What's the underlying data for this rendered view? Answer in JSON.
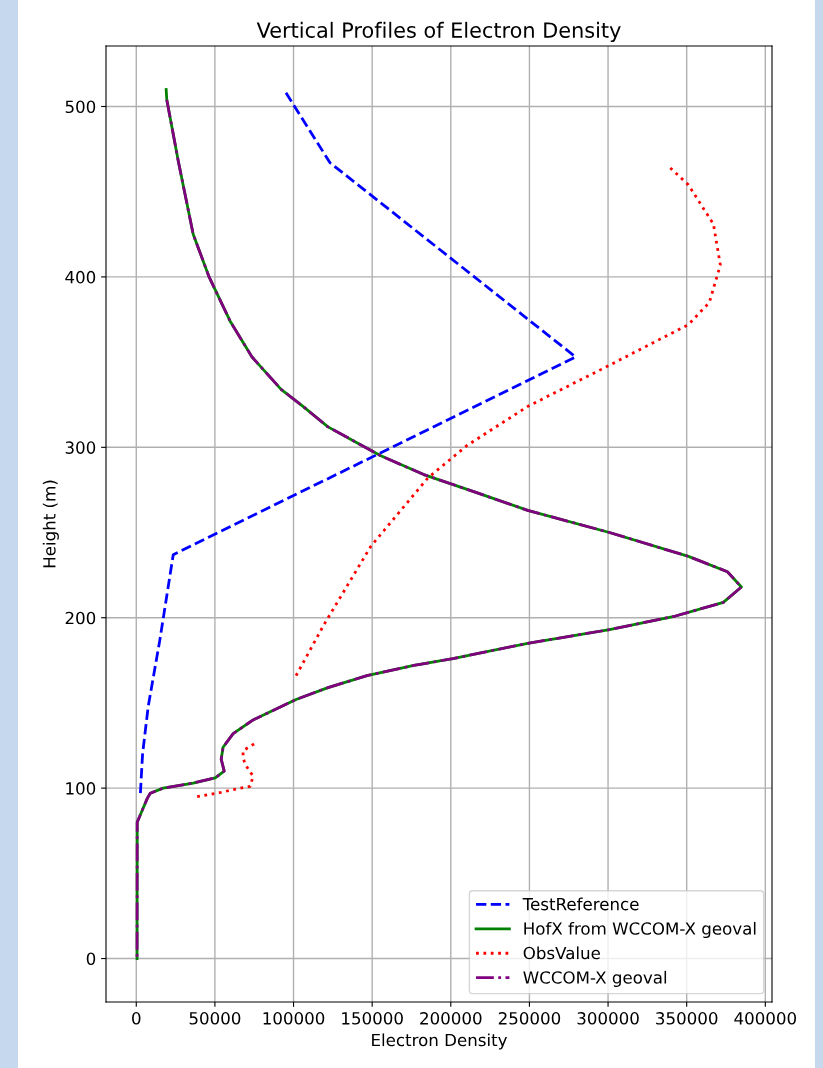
{
  "chart_data": {
    "type": "line",
    "title": "Vertical Profiles of Electron Density",
    "xlabel": "Electron Density",
    "ylabel": "Height (m)",
    "xlim": [
      -19250,
      404250
    ],
    "ylim": [
      -25.5,
      535.5
    ],
    "xticks": [
      0,
      50000,
      100000,
      150000,
      200000,
      250000,
      300000,
      350000,
      400000
    ],
    "yticks": [
      0,
      100,
      200,
      300,
      400,
      500
    ],
    "grid": true,
    "legend": "bottom right",
    "series": [
      {
        "name": "TestReference",
        "color": "#0000ff",
        "line_style": "dashed",
        "x": [
          95200,
          123200,
          279400,
          23500,
          15000,
          7600,
          4000,
          2500
        ],
        "values": [
          508,
          467,
          353,
          237,
          187,
          148,
          120,
          95
        ]
      },
      {
        "name": "HofX from WCCOM-X geoval",
        "color": "#008000",
        "line_style": "solid",
        "x": [
          19000,
          19400,
          26700,
          36200,
          46300,
          59700,
          73600,
          92100,
          106000,
          121900,
          139700,
          155500,
          182800,
          214600,
          248900,
          300900,
          351100,
          375900,
          384800,
          373300,
          342900,
          300900,
          248900,
          201300,
          176500,
          146700,
          121900,
          101600,
          74300,
          61600,
          55200,
          54000,
          55900,
          50200,
          36200,
          17100,
          8900,
          7000,
          3800,
          600,
          500
        ],
        "values": [
          510,
          504,
          468,
          425,
          400,
          374,
          353,
          334,
          324,
          312,
          303,
          295,
          284,
          274,
          263,
          250,
          236,
          227,
          218,
          209,
          201,
          193,
          185,
          176,
          172,
          166,
          159,
          152,
          140,
          132,
          124,
          117,
          110,
          106,
          103,
          100,
          97,
          94,
          87,
          80,
          0
        ]
      },
      {
        "name": "ObsValue",
        "color": "#ff0000",
        "line_style": "dotted",
        "x": [
          38700,
          51400,
          66000,
          72400,
          74300,
          69200,
          67900,
          67900,
          76800,
          null,
          101600,
          119400,
          149200,
          185400,
          210200,
          248900,
          298400,
          351100,
          364400,
          371400,
          367000,
          351100,
          338400
        ],
        "values": [
          95,
          97,
          100,
          101,
          107,
          114,
          118,
          122,
          127,
          null,
          166,
          196,
          242,
          282,
          301,
          324,
          347,
          372,
          385,
          407,
          431,
          454,
          465
        ]
      },
      {
        "name": "WCCOM-X geoval",
        "color": "#800080",
        "line_style": "dashdot",
        "x": [
          19400,
          26700,
          36200,
          46300,
          59700,
          73600,
          92100,
          106000,
          121900,
          139700,
          155500,
          182800,
          214600,
          248900,
          300900,
          351100,
          375900,
          384800,
          373300,
          342900,
          300900,
          248900,
          201300,
          176500,
          146700,
          121900,
          101600,
          74300,
          61600,
          55200,
          54000,
          55900,
          50200,
          36200,
          17100,
          8900,
          7000,
          3800,
          600,
          500
        ],
        "values": [
          504,
          468,
          425,
          400,
          374,
          353,
          334,
          324,
          312,
          303,
          295,
          284,
          274,
          263,
          250,
          236,
          227,
          218,
          209,
          201,
          193,
          185,
          176,
          172,
          166,
          159,
          152,
          140,
          132,
          124,
          117,
          110,
          106,
          103,
          100,
          97,
          94,
          87,
          80,
          0
        ]
      }
    ]
  }
}
